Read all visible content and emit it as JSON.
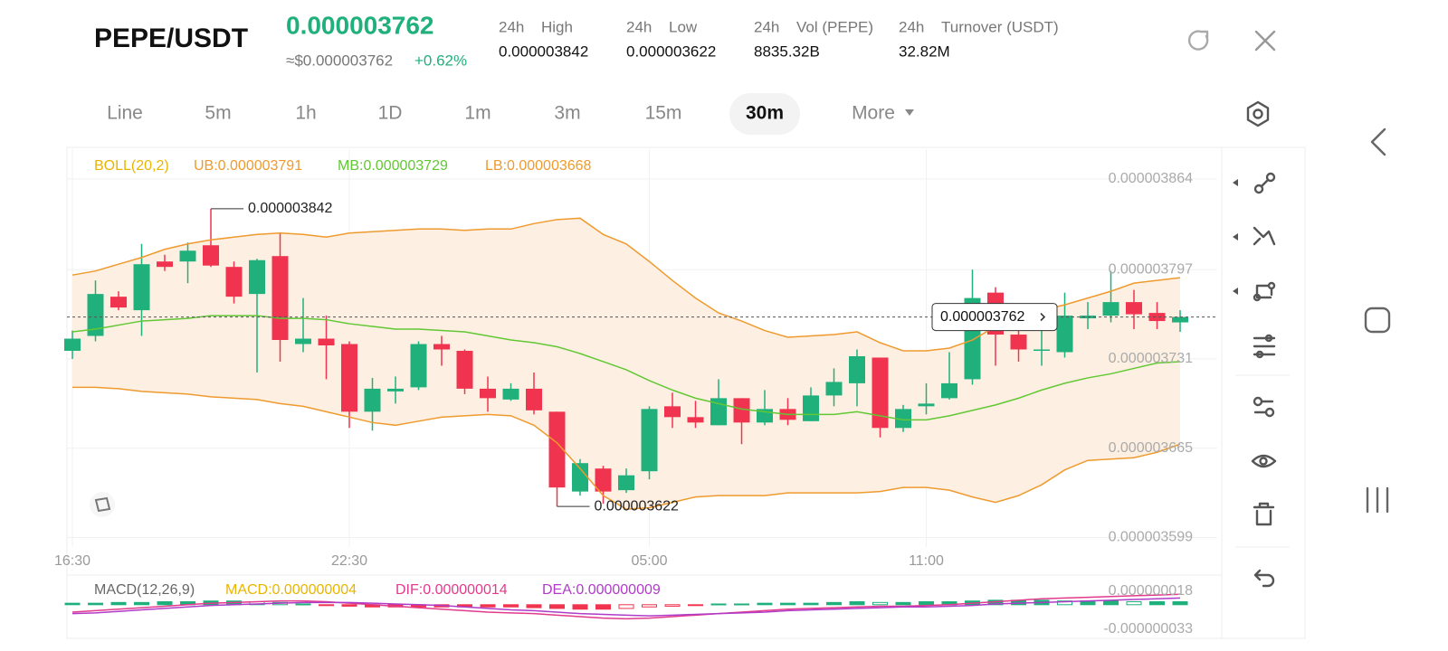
{
  "header": {
    "pair": "PEPE/USDT",
    "price": "0.000003762",
    "usd_price": "≈$0.000003762",
    "change": "+0.62%",
    "stats": [
      {
        "period": "24h",
        "label": "High",
        "value": "0.000003842"
      },
      {
        "period": "24h",
        "label": "Low",
        "value": "0.000003622"
      },
      {
        "period": "24h",
        "label": "Vol (PEPE)",
        "value": "8835.32B"
      },
      {
        "period": "24h",
        "label": "Turnover (USDT)",
        "value": "32.82M"
      }
    ]
  },
  "timeframes": [
    "Line",
    "5m",
    "1h",
    "1D",
    "1m",
    "3m",
    "15m",
    "30m",
    "More"
  ],
  "selected": "30m",
  "chart_data": [
    {
      "type": "candlestick",
      "indicator": {
        "text": "BOLL(20,2)",
        "color": "#e9b500"
      },
      "categories": [
        "16:30",
        null,
        null,
        null,
        null,
        null,
        null,
        null,
        null,
        null,
        null,
        null,
        "22:30",
        null,
        null,
        null,
        null,
        null,
        null,
        null,
        null,
        null,
        null,
        null,
        null,
        "05:00",
        null,
        null,
        null,
        null,
        null,
        null,
        null,
        null,
        null,
        null,
        null,
        "11:00",
        null,
        null,
        null,
        null,
        null,
        null,
        null,
        null,
        null,
        null,
        null
      ],
      "up_color": "#1fb07c",
      "down_color": "#f0344f",
      "open": [
        3.737e-06,
        3.748e-06,
        3.777e-06,
        3.767e-06,
        3.803e-06,
        3.803e-06,
        3.815e-06,
        3.799e-06,
        3.779e-06,
        3.807e-06,
        3.742e-06,
        3.746e-06,
        3.742e-06,
        3.692e-06,
        3.707e-06,
        3.71e-06,
        3.742e-06,
        3.737e-06,
        3.709e-06,
        3.701e-06,
        3.709e-06,
        3.692e-06,
        3.633e-06,
        3.65e-06,
        3.634e-06,
        3.648e-06,
        3.696e-06,
        3.688e-06,
        3.682e-06,
        3.702e-06,
        3.684e-06,
        3.694e-06,
        3.685e-06,
        3.704e-06,
        3.713e-06,
        3.732e-06,
        3.68e-06,
        3.696e-06,
        3.702e-06,
        3.716e-06,
        3.78e-06,
        3.749e-06,
        3.737e-06,
        3.736e-06,
        3.761e-06,
        3.763e-06,
        3.773e-06,
        3.765e-06,
        3.758e-06
      ],
      "high": [
        3.752e-06,
        3.789e-06,
        3.781e-06,
        3.816e-06,
        3.808e-06,
        3.817e-06,
        3.842e-06,
        3.803e-06,
        3.805e-06,
        3.824e-06,
        3.776e-06,
        3.763e-06,
        3.744e-06,
        3.717e-06,
        3.718e-06,
        3.744e-06,
        3.748e-06,
        3.738e-06,
        3.718e-06,
        3.713e-06,
        3.721e-06,
        3.692e-06,
        3.657e-06,
        3.652e-06,
        3.65e-06,
        3.696e-06,
        3.706e-06,
        3.7e-06,
        3.716e-06,
        3.702e-06,
        3.708e-06,
        3.702e-06,
        3.71e-06,
        3.724e-06,
        3.738e-06,
        3.732e-06,
        3.697e-06,
        3.713e-06,
        3.736e-06,
        3.797e-06,
        3.784e-06,
        3.758e-06,
        3.756e-06,
        3.78e-06,
        3.773e-06,
        3.796e-06,
        3.782e-06,
        3.773e-06,
        3.767e-06
      ],
      "low": [
        3.731e-06,
        3.744e-06,
        3.767e-06,
        3.748e-06,
        3.796e-06,
        3.787e-06,
        3.799e-06,
        3.772e-06,
        3.721e-06,
        3.729e-06,
        3.736e-06,
        3.716e-06,
        3.68e-06,
        3.678e-06,
        3.698e-06,
        3.708e-06,
        3.726e-06,
        3.705e-06,
        3.692e-06,
        3.7e-06,
        3.69e-06,
        3.622e-06,
        3.63e-06,
        3.624e-06,
        3.632e-06,
        3.642e-06,
        3.68e-06,
        3.68e-06,
        3.682e-06,
        3.668e-06,
        3.682e-06,
        3.682e-06,
        3.685e-06,
        3.696e-06,
        3.696e-06,
        3.673e-06,
        3.677e-06,
        3.69e-06,
        3.701e-06,
        3.712e-06,
        3.726e-06,
        3.729e-06,
        3.726e-06,
        3.732e-06,
        3.753e-06,
        3.758e-06,
        3.753e-06,
        3.753e-06,
        3.751e-06
      ],
      "close": [
        3.746e-06,
        3.779e-06,
        3.769e-06,
        3.801e-06,
        3.799e-06,
        3.811e-06,
        3.8e-06,
        3.777e-06,
        3.804e-06,
        3.745e-06,
        3.746e-06,
        3.741e-06,
        3.692e-06,
        3.709e-06,
        3.709e-06,
        3.742e-06,
        3.738e-06,
        3.709e-06,
        3.702e-06,
        3.709e-06,
        3.693e-06,
        3.636e-06,
        3.654e-06,
        3.633e-06,
        3.645e-06,
        3.694e-06,
        3.688e-06,
        3.684e-06,
        3.702e-06,
        3.684e-06,
        3.694e-06,
        3.686e-06,
        3.704e-06,
        3.714e-06,
        3.733e-06,
        3.68e-06,
        3.694e-06,
        3.698e-06,
        3.713e-06,
        3.776e-06,
        3.749e-06,
        3.738e-06,
        3.738e-06,
        3.763e-06,
        3.763e-06,
        3.773e-06,
        3.764e-06,
        3.759e-06,
        3.762e-06
      ],
      "series": [
        {
          "name": "UB:0.000003791",
          "color": "#ef9a2e",
          "values": [
            3.793e-06,
            3.796e-06,
            3.801e-06,
            3.806e-06,
            3.812e-06,
            3.816e-06,
            3.819e-06,
            3.821e-06,
            3.823e-06,
            3.824e-06,
            3.823e-06,
            3.821e-06,
            3.824e-06,
            3.825e-06,
            3.826e-06,
            3.827e-06,
            3.827e-06,
            3.826e-06,
            3.827e-06,
            3.827e-06,
            3.831e-06,
            3.834e-06,
            3.835e-06,
            3.823e-06,
            3.816e-06,
            3.803e-06,
            3.789e-06,
            3.776e-06,
            3.765e-06,
            3.759e-06,
            3.752e-06,
            3.747e-06,
            3.748e-06,
            3.749e-06,
            3.751e-06,
            3.743e-06,
            3.737e-06,
            3.737e-06,
            3.739e-06,
            3.745e-06,
            3.755e-06,
            3.761e-06,
            3.767e-06,
            3.771e-06,
            3.776e-06,
            3.781e-06,
            3.787e-06,
            3.789e-06,
            3.791e-06
          ]
        },
        {
          "name": "MB:0.000003729",
          "color": "#62c734",
          "values": [
            3.751e-06,
            3.753e-06,
            3.756e-06,
            3.759e-06,
            3.76e-06,
            3.761e-06,
            3.763e-06,
            3.763e-06,
            3.763e-06,
            3.761e-06,
            3.761e-06,
            3.76e-06,
            3.757e-06,
            3.755e-06,
            3.753e-06,
            3.753e-06,
            3.752e-06,
            3.751e-06,
            3.748e-06,
            3.745e-06,
            3.743e-06,
            3.74e-06,
            3.735e-06,
            3.729e-06,
            3.723e-06,
            3.715e-06,
            3.708e-06,
            3.702e-06,
            3.698e-06,
            3.694e-06,
            3.692e-06,
            3.69e-06,
            3.69e-06,
            3.69e-06,
            3.692e-06,
            3.689e-06,
            3.686e-06,
            3.686e-06,
            3.689e-06,
            3.693e-06,
            3.697e-06,
            3.702e-06,
            3.708e-06,
            3.713e-06,
            3.717e-06,
            3.72e-06,
            3.724e-06,
            3.728e-06,
            3.729e-06
          ]
        },
        {
          "name": "LB:0.000003668",
          "color": "#ef9a2e",
          "values": [
            3.71e-06,
            3.71e-06,
            3.709e-06,
            3.707e-06,
            3.706e-06,
            3.705e-06,
            3.703e-06,
            3.702e-06,
            3.701e-06,
            3.698e-06,
            3.696e-06,
            3.692e-06,
            3.688e-06,
            3.684e-06,
            3.682e-06,
            3.685e-06,
            3.688e-06,
            3.689e-06,
            3.69e-06,
            3.689e-06,
            3.682e-06,
            3.669e-06,
            3.65e-06,
            3.63e-06,
            3.62e-06,
            3.621e-06,
            3.625e-06,
            3.629e-06,
            3.63e-06,
            3.63e-06,
            3.63e-06,
            3.632e-06,
            3.632e-06,
            3.632e-06,
            3.632e-06,
            3.633e-06,
            3.636e-06,
            3.636e-06,
            3.634e-06,
            3.629e-06,
            3.625e-06,
            3.63e-06,
            3.638e-06,
            3.649e-06,
            3.656e-06,
            3.657e-06,
            3.658e-06,
            3.662e-06,
            3.668e-06
          ]
        }
      ],
      "band_fill": "#fdf0e2",
      "max_label": "0.000003842",
      "min_label": "0.000003622",
      "last_label": "0.000003762",
      "ylim": [
        3.592e-06,
        3.886e-06
      ],
      "yticks": [
        3.864e-06,
        3.797e-06,
        3.731e-06,
        3.665e-06,
        3.599e-06
      ],
      "grid": true
    },
    {
      "type": "macd",
      "title": "MACD(12,26,9)",
      "histogram": {
        "name": "MACD:0.000000004",
        "label_color": "#e9b500",
        "up_color": "#1fb07c",
        "down_color": "#f0344f",
        "values": [
          2e-09,
          2e-09,
          3e-09,
          3e-09,
          4e-09,
          4e-09,
          5e-09,
          5e-09,
          4e-09,
          3e-09,
          1e-09,
          -1e-09,
          -2e-09,
          -3e-09,
          -3e-09,
          -3e-09,
          -3e-09,
          -3e-09,
          -3e-09,
          -3e-09,
          -4e-09,
          -5e-09,
          -6e-09,
          -6e-09,
          -5e-09,
          -3e-09,
          -2e-09,
          -1e-09,
          1e-09,
          1e-09,
          2e-09,
          2e-09,
          2e-09,
          3e-09,
          4e-09,
          3e-09,
          3e-09,
          4e-09,
          4e-09,
          5e-09,
          6e-09,
          6e-09,
          6e-09,
          5e-09,
          5e-09,
          5e-09,
          4e-09,
          4e-09,
          4e-09
        ]
      },
      "series": [
        {
          "name": "DIF:0.000000014",
          "color": "#e23a8c",
          "values": [
            -1e-08,
            -8e-09,
            -6e-09,
            -4e-09,
            -2e-09,
            0,
            2e-09,
            3e-09,
            4e-09,
            5e-09,
            5e-09,
            4e-09,
            2e-09,
            0,
            -2e-09,
            -4e-09,
            -6e-09,
            -8e-09,
            -1e-08,
            -1.1e-08,
            -1.2e-08,
            -1.4e-08,
            -1.6e-08,
            -1.8e-08,
            -1.9e-08,
            -1.8e-08,
            -1.6e-08,
            -1.4e-08,
            -1.2e-08,
            -1e-08,
            -8e-09,
            -6e-09,
            -5e-09,
            -4e-09,
            -3e-09,
            -2e-09,
            -2e-09,
            -1e-09,
            0,
            2e-09,
            4e-09,
            6e-09,
            8e-09,
            9e-09,
            1e-08,
            1.1e-08,
            1.2e-08,
            1.3e-08,
            1.4e-08
          ]
        },
        {
          "name": "DEA:0.000000009",
          "color": "#b03bc8",
          "values": [
            -1.2e-08,
            -1.1e-08,
            -9e-09,
            -7e-09,
            -5e-09,
            -3e-09,
            -1e-09,
            0,
            1e-09,
            2e-09,
            3e-09,
            3e-09,
            3e-09,
            2e-09,
            1e-09,
            0,
            -1e-09,
            -3e-09,
            -5e-09,
            -7e-09,
            -8e-09,
            -1e-08,
            -1.2e-08,
            -1.3e-08,
            -1.4e-08,
            -1.5e-08,
            -1.4e-08,
            -1.3e-08,
            -1.2e-08,
            -1.1e-08,
            -1e-08,
            -8e-09,
            -7e-09,
            -6e-09,
            -5e-09,
            -4e-09,
            -3e-09,
            -3e-09,
            -2e-09,
            -1e-09,
            1e-09,
            2e-09,
            3e-09,
            4e-09,
            5e-09,
            6e-09,
            7e-09,
            8e-09,
            9e-09
          ]
        }
      ],
      "ylim": [
        -4.4e-08,
        3.5e-08
      ],
      "yticks": [
        {
          "value": 1.8e-08,
          "label": "0.000000018"
        },
        {
          "value": -3.3e-08,
          "label": "-0.000000033"
        }
      ]
    }
  ]
}
